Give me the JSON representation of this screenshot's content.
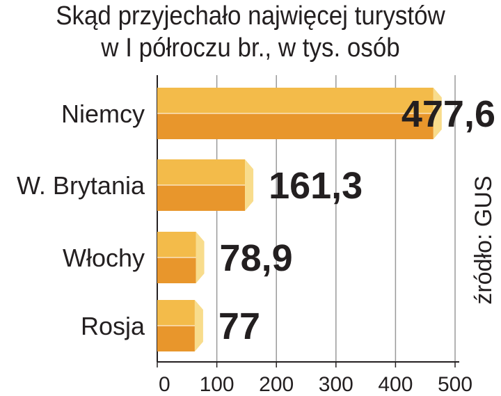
{
  "chart_data": {
    "type": "bar",
    "orientation": "horizontal",
    "title_lines": [
      "Skąd przyjechało najwięcej turystów",
      "w I półroczu br., w tys. osób"
    ],
    "categories": [
      "Niemcy",
      "W. Brytania",
      "Włochy",
      "Rosja"
    ],
    "values": [
      477.6,
      161.3,
      78.9,
      77
    ],
    "value_labels": [
      "477,6",
      "161,3",
      "78,9",
      "77"
    ],
    "xlim": [
      0,
      500
    ],
    "x_ticks": [
      0,
      100,
      200,
      300,
      400,
      500
    ],
    "x_tick_labels": [
      "0",
      "100",
      "200",
      "300",
      "400",
      "500"
    ],
    "grid": "vertical",
    "source": "źródło: GUS",
    "colors": {
      "bar_top": "#f3bb4a",
      "bar_bottom": "#e8962c",
      "bar_cap": "#f8dc8c",
      "grid": "#999999",
      "text": "#231f20"
    }
  }
}
